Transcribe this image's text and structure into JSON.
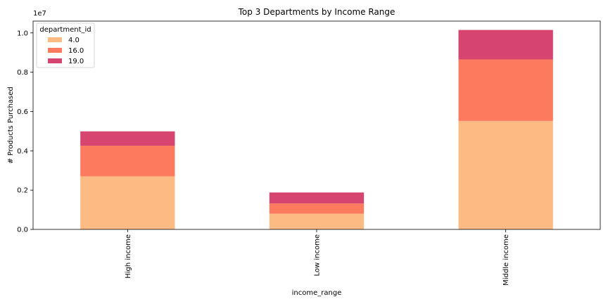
{
  "chart_data": {
    "type": "bar",
    "stacked": true,
    "title": "Top 3 Departments by Income Range",
    "xlabel": "income_range",
    "ylabel": "# Products Purchased",
    "y_offset_label": "1e7",
    "ylim": [
      0,
      10600000
    ],
    "y_ticks": [
      0,
      2000000,
      4000000,
      6000000,
      8000000,
      10000000
    ],
    "y_tick_labels": [
      "0.0",
      "0.2",
      "0.4",
      "0.6",
      "0.8",
      "1.0"
    ],
    "categories": [
      "High income",
      "Low income",
      "Middle income"
    ],
    "legend": {
      "title": "department_id",
      "placement": "top-left"
    },
    "grid": false,
    "series": [
      {
        "name": "4.0",
        "color": "#fdbb84",
        "values": [
          2700000,
          800000,
          5520000
        ]
      },
      {
        "name": "16.0",
        "color": "#fc7a5e",
        "values": [
          1560000,
          520000,
          3130000
        ]
      },
      {
        "name": "19.0",
        "color": "#d6456f",
        "values": [
          730000,
          560000,
          1500000
        ]
      }
    ]
  }
}
